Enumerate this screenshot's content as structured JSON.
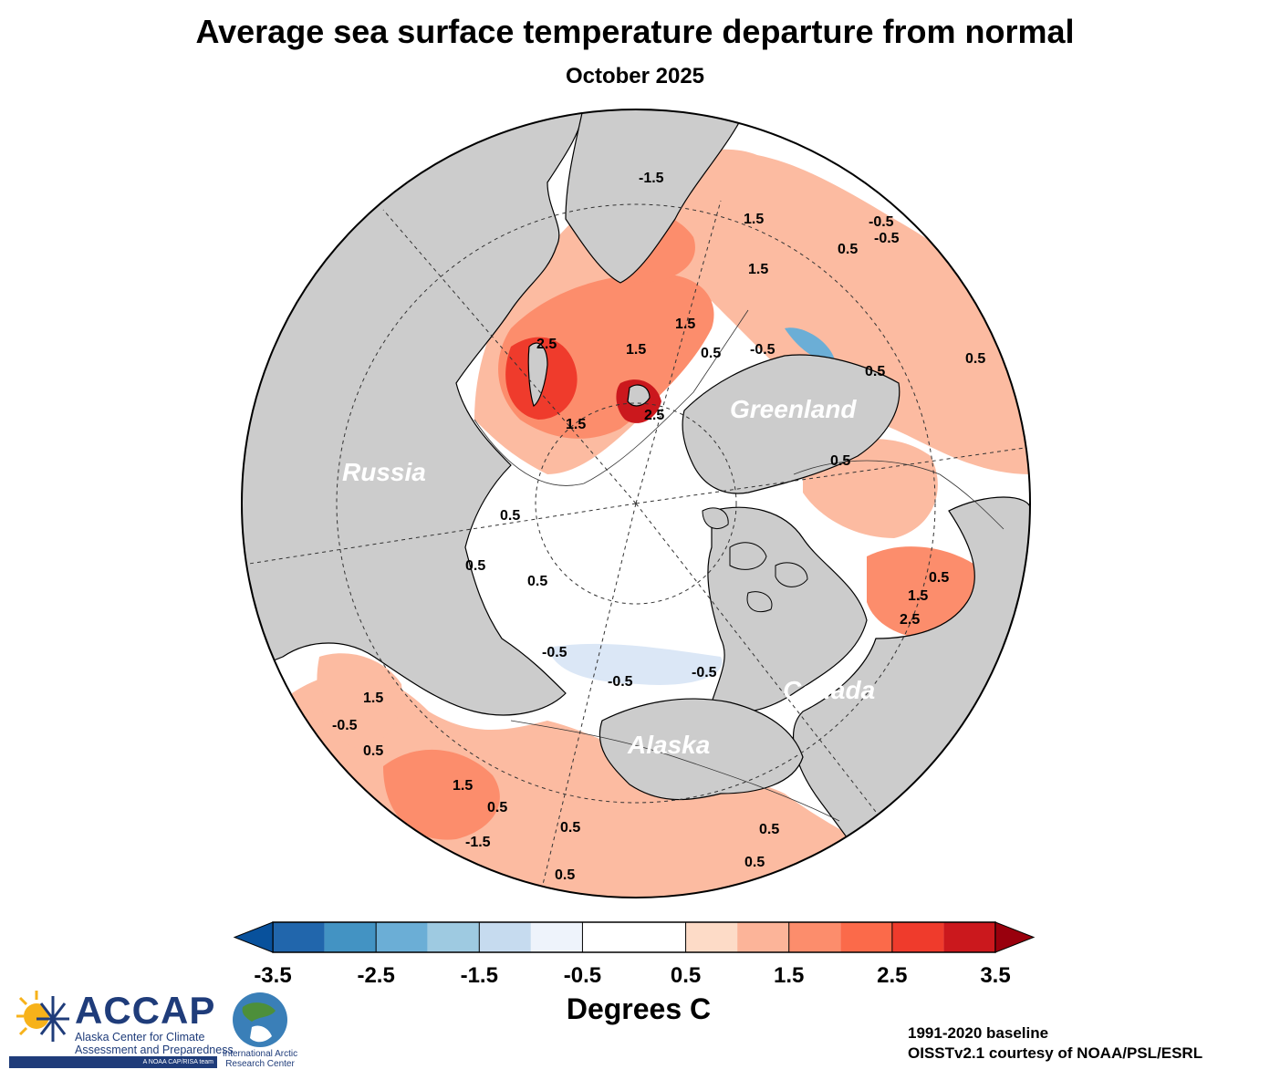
{
  "title": "Average sea surface temperature departure from normal",
  "subtitle": "October 2025",
  "region_labels": {
    "russia": "Russia",
    "greenland": "Greenland",
    "canada": "Canada",
    "alaska": "Alaska"
  },
  "contour_labels": [
    "2.5",
    "1.5",
    "1.5",
    "2.5",
    "-1.5",
    "1.5",
    "1.5",
    "0.5",
    "-0.5",
    "0.5",
    "0.5",
    "-0.5",
    "0.5",
    "0.5",
    "0.5",
    "1.5",
    "2.5",
    "0.5",
    "0.5",
    "-0.5",
    "-0.5",
    "-0.5",
    "1.5",
    "-0.5",
    "0.5",
    "1.5",
    "0.5",
    "0.5",
    "-1.5",
    "0.5",
    "0.5",
    "0.5",
    "0.5",
    "1.5",
    "-0.5"
  ],
  "colorbar": {
    "ticks": [
      "-3.5",
      "-2.5",
      "-1.5",
      "-0.5",
      "0.5",
      "1.5",
      "2.5",
      "3.5"
    ],
    "colors": [
      "#2166ac",
      "#4393c3",
      "#6baed6",
      "#9ecae1",
      "#c6dbef",
      "#eef3fb",
      "#ffffff",
      "#ffffff",
      "#fddbc7",
      "#fcb499",
      "#fc8d6c",
      "#fb6a4a",
      "#ef3b2c",
      "#cb181d"
    ],
    "under_color": "#08519c",
    "over_color": "#99000d",
    "label": "Degrees C"
  },
  "credits": {
    "baseline": "1991-2020 baseline",
    "source": "OISSTv2.1 courtesy of NOAA/PSL/ESRL"
  },
  "logos": {
    "accap_name": "ACCAP",
    "accap_line1": "Alaska Center for Climate",
    "accap_line2": "Assessment and Preparedness",
    "accap_band": "A NOAA CAP/RISA team",
    "iarc_line1": "International Arctic",
    "iarc_line2": "Research Center"
  }
}
